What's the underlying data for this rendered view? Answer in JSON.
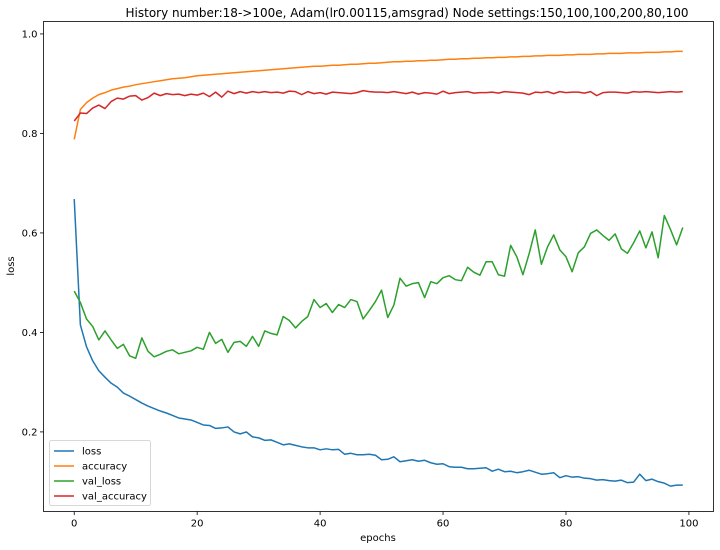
{
  "chart_data": {
    "type": "line",
    "title": "History number:18->100e, Adam(lr0.00115,amsgrad) Node settings:150,100,100,200,80,100",
    "xlabel": "epochs",
    "ylabel": "loss",
    "xlim": [
      -5,
      104
    ],
    "ylim": [
      0.04,
      1.025
    ],
    "x_ticks": [
      0,
      20,
      40,
      60,
      80,
      100
    ],
    "y_ticks": [
      0.2,
      0.4,
      0.6,
      0.8,
      1.0
    ],
    "x_tick_labels": [
      "0",
      "20",
      "40",
      "60",
      "80",
      "100"
    ],
    "y_tick_labels": [
      "0.2",
      "0.4",
      "0.6",
      "0.8",
      "1.0"
    ],
    "grid": false,
    "legend_position": "lower-left",
    "series": [
      {
        "name": "loss",
        "color": "#1f77b4",
        "values": [
          0.668,
          0.415,
          0.371,
          0.343,
          0.323,
          0.31,
          0.298,
          0.29,
          0.278,
          0.272,
          0.265,
          0.258,
          0.252,
          0.247,
          0.242,
          0.238,
          0.233,
          0.228,
          0.226,
          0.224,
          0.219,
          0.214,
          0.213,
          0.207,
          0.208,
          0.21,
          0.2,
          0.196,
          0.2,
          0.19,
          0.188,
          0.183,
          0.184,
          0.179,
          0.174,
          0.176,
          0.173,
          0.17,
          0.168,
          0.168,
          0.164,
          0.166,
          0.164,
          0.165,
          0.155,
          0.157,
          0.154,
          0.154,
          0.155,
          0.153,
          0.144,
          0.145,
          0.15,
          0.14,
          0.142,
          0.144,
          0.141,
          0.143,
          0.138,
          0.135,
          0.136,
          0.13,
          0.129,
          0.129,
          0.126,
          0.126,
          0.127,
          0.128,
          0.121,
          0.125,
          0.12,
          0.121,
          0.118,
          0.12,
          0.123,
          0.119,
          0.115,
          0.116,
          0.118,
          0.108,
          0.112,
          0.109,
          0.11,
          0.107,
          0.106,
          0.103,
          0.104,
          0.102,
          0.101,
          0.103,
          0.098,
          0.099,
          0.115,
          0.102,
          0.105,
          0.1,
          0.097,
          0.091,
          0.093,
          0.093
        ]
      },
      {
        "name": "accuracy",
        "color": "#ff7f0e",
        "values": [
          0.788,
          0.848,
          0.862,
          0.871,
          0.878,
          0.882,
          0.887,
          0.89,
          0.893,
          0.895,
          0.898,
          0.9,
          0.902,
          0.904,
          0.906,
          0.908,
          0.91,
          0.911,
          0.912,
          0.914,
          0.916,
          0.917,
          0.918,
          0.919,
          0.92,
          0.921,
          0.922,
          0.923,
          0.924,
          0.925,
          0.926,
          0.927,
          0.928,
          0.929,
          0.93,
          0.931,
          0.932,
          0.933,
          0.934,
          0.935,
          0.935,
          0.936,
          0.937,
          0.937,
          0.938,
          0.939,
          0.939,
          0.94,
          0.941,
          0.941,
          0.942,
          0.943,
          0.944,
          0.944,
          0.945,
          0.945,
          0.946,
          0.946,
          0.947,
          0.947,
          0.948,
          0.949,
          0.949,
          0.95,
          0.95,
          0.951,
          0.951,
          0.952,
          0.952,
          0.953,
          0.953,
          0.954,
          0.954,
          0.955,
          0.955,
          0.956,
          0.956,
          0.957,
          0.957,
          0.957,
          0.958,
          0.958,
          0.959,
          0.959,
          0.959,
          0.96,
          0.96,
          0.961,
          0.961,
          0.961,
          0.962,
          0.962,
          0.962,
          0.963,
          0.963,
          0.963,
          0.964,
          0.964,
          0.965,
          0.965
        ]
      },
      {
        "name": "val_loss",
        "color": "#2ca02c",
        "values": [
          0.483,
          0.46,
          0.427,
          0.412,
          0.385,
          0.403,
          0.385,
          0.368,
          0.376,
          0.353,
          0.348,
          0.389,
          0.362,
          0.351,
          0.356,
          0.362,
          0.365,
          0.357,
          0.36,
          0.363,
          0.37,
          0.366,
          0.4,
          0.378,
          0.386,
          0.36,
          0.38,
          0.382,
          0.372,
          0.392,
          0.372,
          0.403,
          0.398,
          0.395,
          0.432,
          0.424,
          0.409,
          0.422,
          0.432,
          0.466,
          0.45,
          0.458,
          0.44,
          0.456,
          0.45,
          0.466,
          0.462,
          0.427,
          0.444,
          0.462,
          0.485,
          0.43,
          0.455,
          0.509,
          0.493,
          0.498,
          0.5,
          0.47,
          0.502,
          0.498,
          0.51,
          0.514,
          0.506,
          0.504,
          0.531,
          0.521,
          0.515,
          0.542,
          0.542,
          0.516,
          0.513,
          0.575,
          0.552,
          0.516,
          0.558,
          0.606,
          0.537,
          0.572,
          0.596,
          0.566,
          0.552,
          0.522,
          0.56,
          0.572,
          0.599,
          0.606,
          0.595,
          0.585,
          0.598,
          0.568,
          0.559,
          0.58,
          0.604,
          0.57,
          0.602,
          0.55,
          0.635,
          0.607,
          0.576,
          0.611
        ]
      },
      {
        "name": "val_accuracy",
        "color": "#d62728",
        "values": [
          0.825,
          0.841,
          0.84,
          0.851,
          0.857,
          0.85,
          0.864,
          0.871,
          0.869,
          0.875,
          0.876,
          0.867,
          0.872,
          0.881,
          0.876,
          0.88,
          0.878,
          0.879,
          0.876,
          0.879,
          0.877,
          0.881,
          0.874,
          0.883,
          0.873,
          0.885,
          0.88,
          0.884,
          0.881,
          0.884,
          0.882,
          0.884,
          0.882,
          0.883,
          0.881,
          0.885,
          0.884,
          0.878,
          0.884,
          0.88,
          0.882,
          0.879,
          0.883,
          0.882,
          0.881,
          0.88,
          0.882,
          0.886,
          0.884,
          0.883,
          0.883,
          0.882,
          0.884,
          0.882,
          0.88,
          0.883,
          0.879,
          0.882,
          0.881,
          0.879,
          0.885,
          0.88,
          0.882,
          0.883,
          0.884,
          0.881,
          0.882,
          0.882,
          0.883,
          0.881,
          0.884,
          0.883,
          0.882,
          0.881,
          0.878,
          0.883,
          0.882,
          0.884,
          0.88,
          0.884,
          0.882,
          0.883,
          0.883,
          0.881,
          0.884,
          0.876,
          0.882,
          0.883,
          0.883,
          0.882,
          0.881,
          0.884,
          0.883,
          0.884,
          0.883,
          0.882,
          0.883,
          0.884,
          0.883,
          0.884
        ]
      }
    ]
  }
}
